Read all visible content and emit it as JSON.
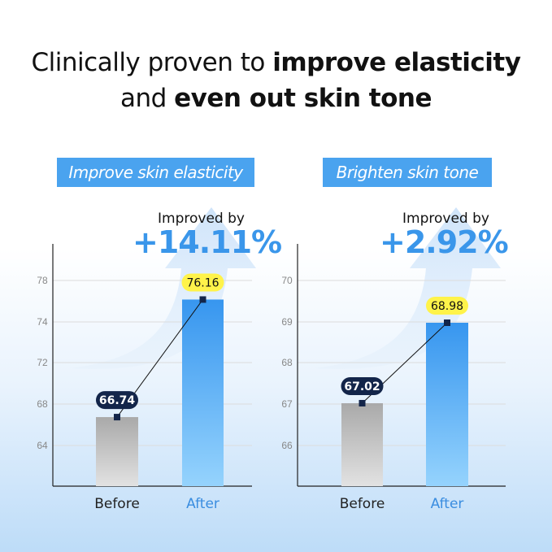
{
  "title": {
    "part1": "Clinically proven to ",
    "bold1": "improve elasticity",
    "part2": "and ",
    "bold2": "even out skin tone"
  },
  "chart_data": [
    {
      "type": "bar",
      "title": "Improve skin elasticity",
      "annotation_label": "Improved by",
      "annotation_value": "+14.11%",
      "categories": [
        "Before",
        "After"
      ],
      "values": [
        66.74,
        76.16
      ],
      "value_labels": [
        "66.74",
        "76.16"
      ],
      "yticks": [
        64,
        68,
        72,
        74,
        78
      ],
      "grid": true,
      "colors": {
        "before": "#b9b9b9",
        "after": "#3a9cf0",
        "before_label_bg": "#13254a",
        "after_label_bg": "#fff34a"
      }
    },
    {
      "type": "bar",
      "title": "Brighten skin tone",
      "annotation_label": "Improved by",
      "annotation_value": "+2.92%",
      "categories": [
        "Before",
        "After"
      ],
      "values": [
        67.02,
        68.98
      ],
      "value_labels": [
        "67.02",
        "68.98"
      ],
      "yticks": [
        66,
        67,
        68,
        69,
        70
      ],
      "grid": true,
      "colors": {
        "before": "#b9b9b9",
        "after": "#3a9cf0",
        "before_label_bg": "#13254a",
        "after_label_bg": "#fff34a"
      }
    }
  ]
}
